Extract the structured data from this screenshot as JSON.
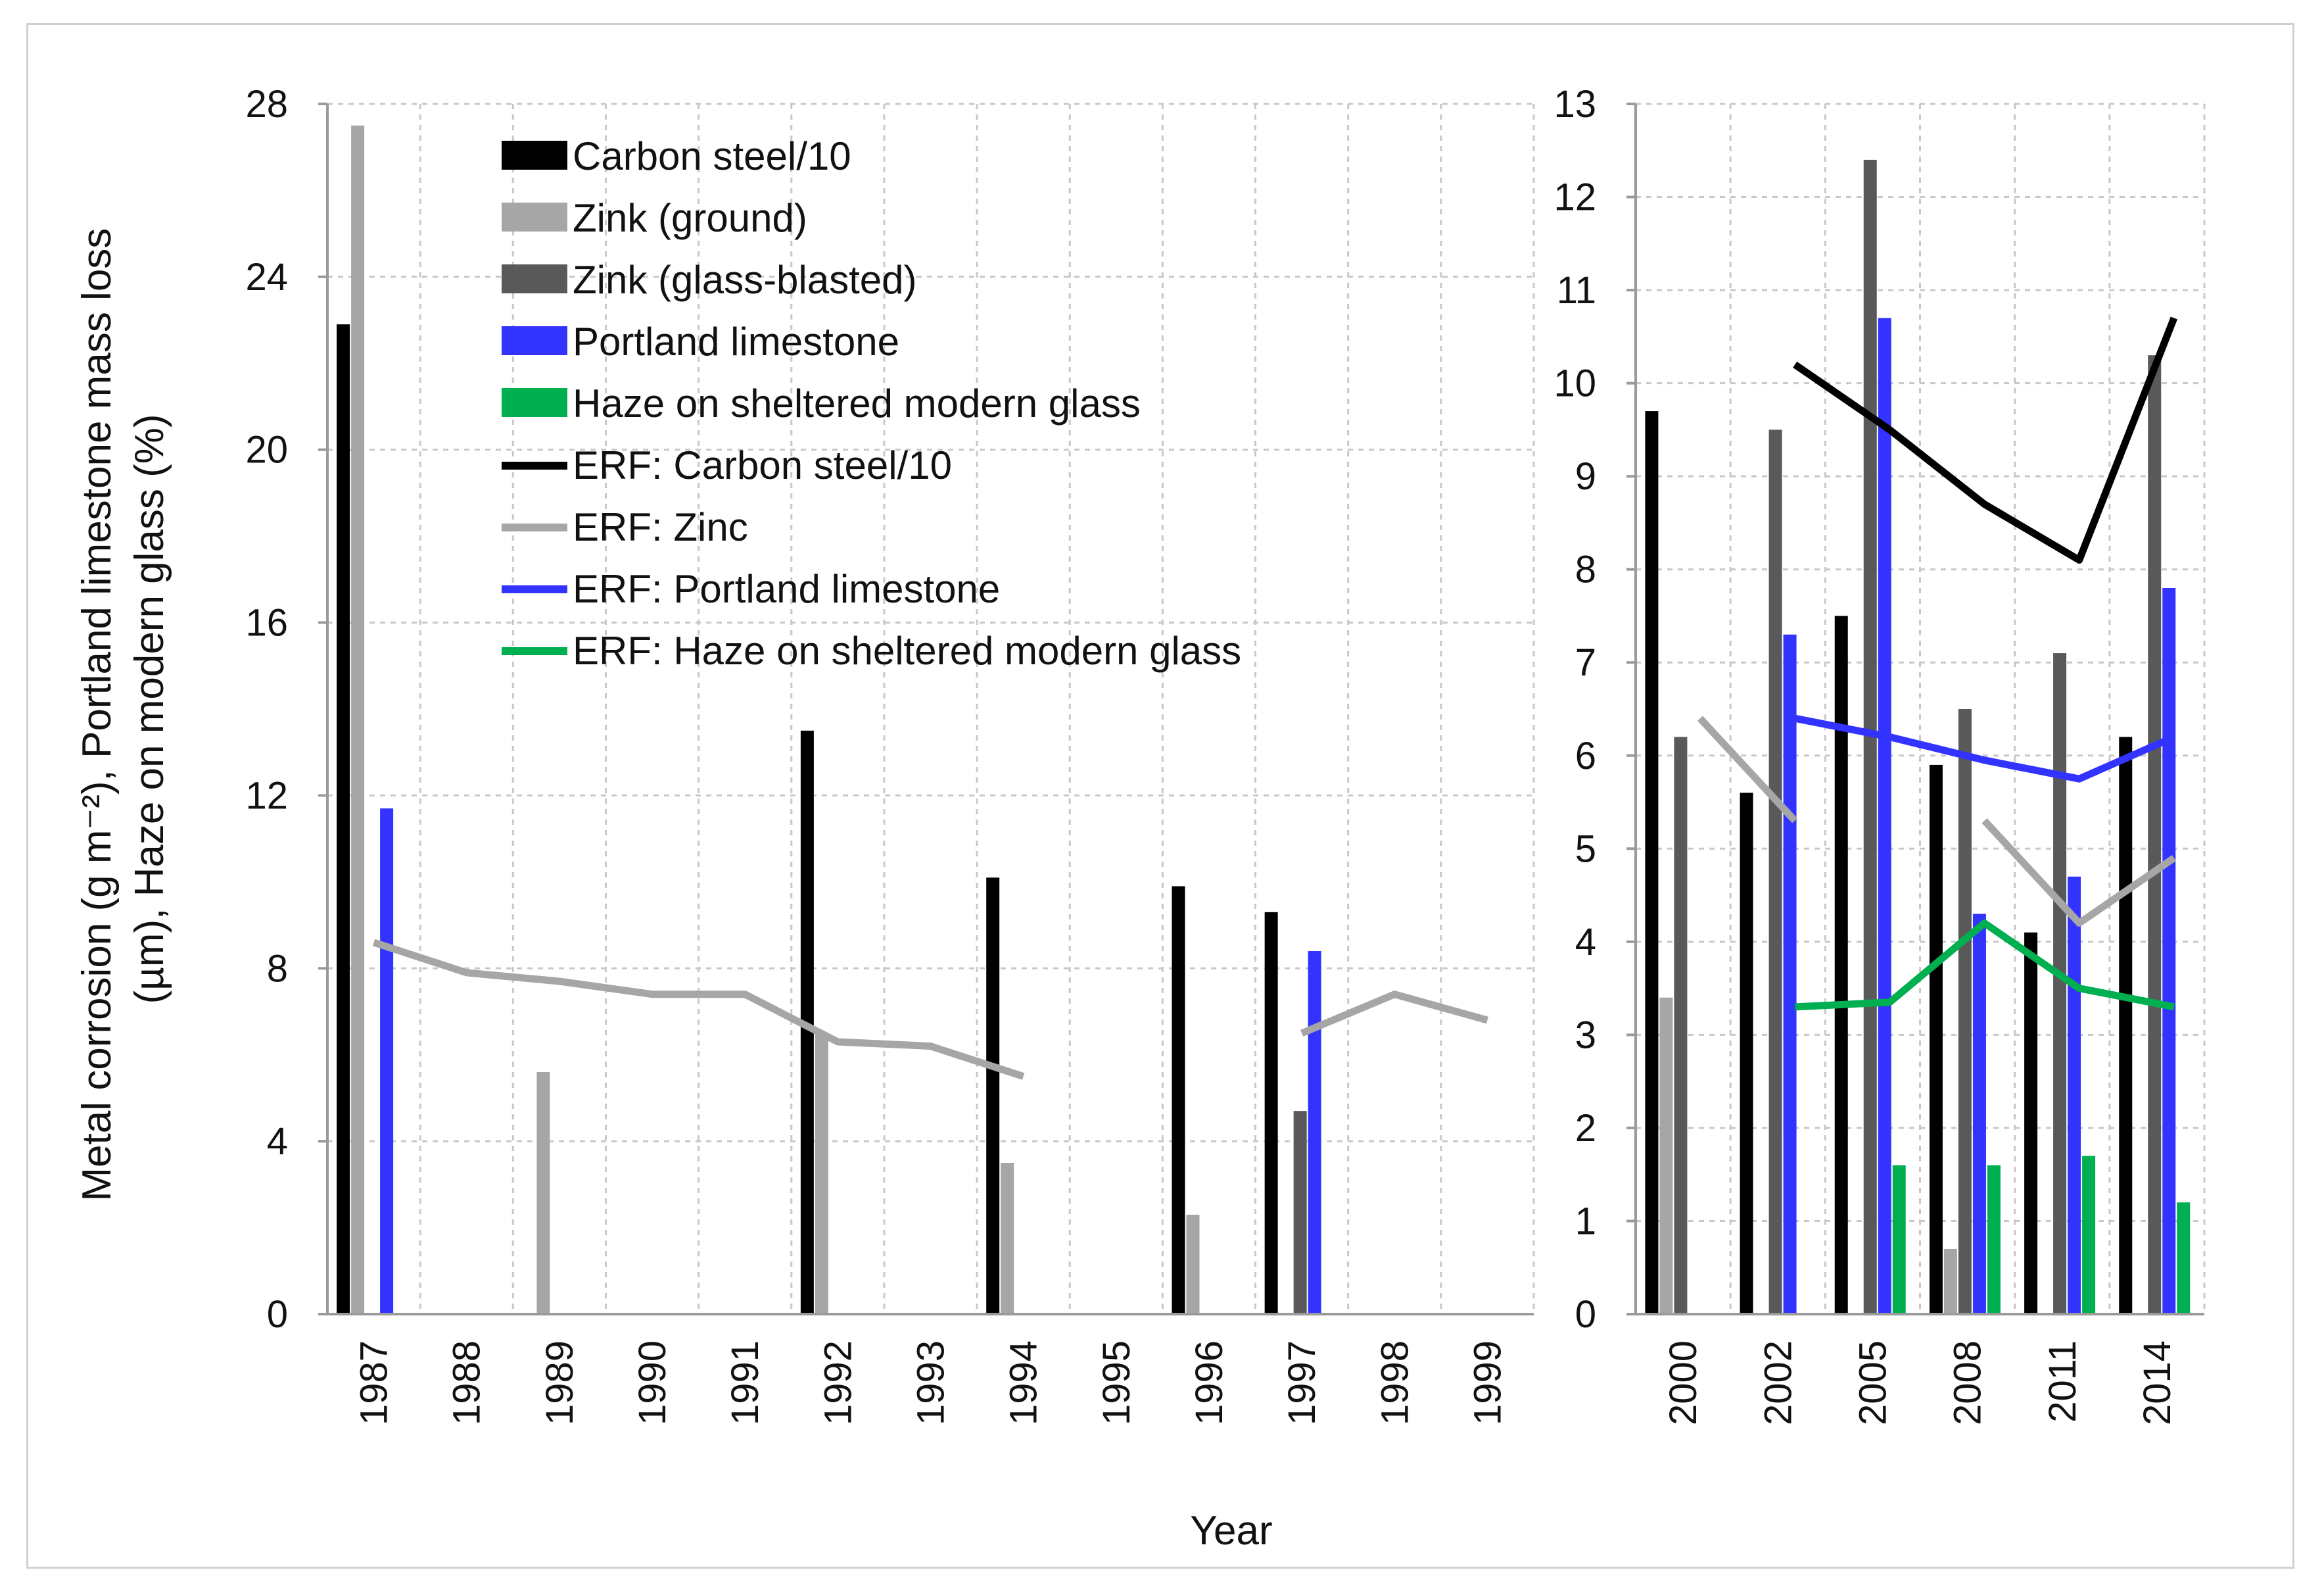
{
  "chart_data": [
    {
      "type": "bar",
      "title": "",
      "xlabel": "Year",
      "ylabel": "Metal corrosion (g m⁻²), Portland limestone mass loss (µm), Haze on modern glass (%)",
      "ylabel_line1": "Metal corrosion (g m⁻²), Portland limestone mass loss",
      "ylabel_line2": "(µm), Haze on modern glass (%)",
      "ylim": [
        0,
        28
      ],
      "yticks": [
        "0",
        "4",
        "8",
        "12",
        "16",
        "20",
        "24",
        "28"
      ],
      "categories": [
        "1987",
        "1988",
        "1989",
        "1990",
        "1991",
        "1992",
        "1993",
        "1994",
        "1995",
        "1996",
        "1997",
        "1998",
        "1999"
      ],
      "series": [
        {
          "name": "Carbon steel/10",
          "kind": "bar",
          "color": "#000000",
          "values": [
            22.9,
            null,
            null,
            null,
            null,
            13.5,
            null,
            10.1,
            null,
            9.9,
            9.3,
            null,
            null
          ]
        },
        {
          "name": "Zink (ground)",
          "kind": "bar",
          "color": "#a6a6a6",
          "values": [
            27.5,
            null,
            5.6,
            null,
            null,
            6.5,
            null,
            3.5,
            null,
            2.3,
            null,
            null,
            null
          ]
        },
        {
          "name": "Zink (glass-blasted)",
          "kind": "bar",
          "color": "#595959",
          "values": [
            null,
            null,
            null,
            null,
            null,
            null,
            null,
            null,
            null,
            null,
            4.7,
            null,
            null
          ]
        },
        {
          "name": "Portland limestone",
          "kind": "bar",
          "color": "#3333ff",
          "values": [
            11.7,
            null,
            null,
            null,
            null,
            null,
            null,
            null,
            null,
            null,
            8.4,
            null,
            null
          ]
        },
        {
          "name": "ERF: Zinc",
          "kind": "line",
          "color": "#a6a6a6",
          "segments": [
            [
              [
                0,
                8.6
              ],
              [
                1,
                7.9
              ],
              [
                2,
                7.7
              ],
              [
                3,
                7.4
              ],
              [
                4,
                7.4
              ],
              [
                5,
                6.3
              ],
              [
                6,
                6.2
              ],
              [
                7,
                5.5
              ]
            ],
            [
              [
                10,
                6.5
              ],
              [
                11,
                7.4
              ],
              [
                12,
                6.8
              ]
            ]
          ]
        }
      ]
    },
    {
      "type": "bar",
      "title": "",
      "xlabel": "Year",
      "ylabel": "",
      "ylim": [
        0,
        13
      ],
      "yticks": [
        "0",
        "1",
        "2",
        "3",
        "4",
        "5",
        "6",
        "7",
        "8",
        "9",
        "10",
        "11",
        "12",
        "13"
      ],
      "categories": [
        "2000",
        "2002",
        "2005",
        "2008",
        "2011",
        "2014"
      ],
      "series": [
        {
          "name": "Carbon steel/10",
          "kind": "bar",
          "color": "#000000",
          "values": [
            9.7,
            5.6,
            7.5,
            5.9,
            4.1,
            6.2
          ]
        },
        {
          "name": "Zink (ground)",
          "kind": "bar",
          "color": "#a6a6a6",
          "values": [
            3.4,
            null,
            null,
            0.7,
            null,
            null
          ]
        },
        {
          "name": "Zink (glass-blasted)",
          "kind": "bar",
          "color": "#595959",
          "values": [
            6.2,
            9.5,
            12.4,
            6.5,
            7.1,
            10.3
          ]
        },
        {
          "name": "Portland limestone",
          "kind": "bar",
          "color": "#3333ff",
          "values": [
            null,
            7.3,
            10.7,
            4.3,
            4.7,
            7.8
          ]
        },
        {
          "name": "Haze on sheltered modern glass",
          "kind": "bar",
          "color": "#00b050",
          "values": [
            null,
            null,
            1.6,
            1.6,
            1.7,
            1.2
          ]
        },
        {
          "name": "ERF: Carbon steel/10",
          "kind": "line",
          "color": "#000000",
          "segments": [
            [
              [
                1,
                10.2
              ],
              [
                2,
                9.5
              ],
              [
                3,
                8.7
              ],
              [
                4,
                8.1
              ],
              [
                5,
                10.7
              ]
            ]
          ]
        },
        {
          "name": "ERF: Zinc",
          "kind": "line",
          "color": "#a6a6a6",
          "segments": [
            [
              [
                0,
                6.4
              ],
              [
                1,
                5.3
              ]
            ],
            [
              [
                3,
                5.3
              ],
              [
                4,
                4.2
              ],
              [
                5,
                4.9
              ]
            ]
          ]
        },
        {
          "name": "ERF: Portland limestone",
          "kind": "line",
          "color": "#3333ff",
          "segments": [
            [
              [
                1,
                6.4
              ],
              [
                2,
                6.2
              ],
              [
                3,
                5.95
              ],
              [
                4,
                5.75
              ],
              [
                5,
                6.2
              ]
            ]
          ]
        },
        {
          "name": "ERF: Haze on sheltered modern glass",
          "kind": "line",
          "color": "#00b050",
          "segments": [
            [
              [
                1,
                3.3
              ],
              [
                2,
                3.35
              ],
              [
                3,
                4.2
              ],
              [
                4,
                3.5
              ],
              [
                5,
                3.3
              ]
            ]
          ]
        }
      ]
    }
  ],
  "legend": {
    "placement": "top-left inside plot",
    "items": [
      {
        "label": "Carbon steel/10",
        "marker": "bar",
        "color": "#000000"
      },
      {
        "label": "Zink (ground)",
        "marker": "bar",
        "color": "#a6a6a6"
      },
      {
        "label": "Zink (glass-blasted)",
        "marker": "bar",
        "color": "#595959"
      },
      {
        "label": "Portland limestone",
        "marker": "bar",
        "color": "#3333ff"
      },
      {
        "label": "Haze on sheltered modern glass",
        "marker": "bar",
        "color": "#00b050"
      },
      {
        "label": "ERF: Carbon steel/10",
        "marker": "line",
        "color": "#000000"
      },
      {
        "label": "ERF: Zinc",
        "marker": "line",
        "color": "#a6a6a6"
      },
      {
        "label": "ERF: Portland limestone",
        "marker": "line",
        "color": "#3333ff"
      },
      {
        "label": "ERF: Haze on sheltered modern glass",
        "marker": "line",
        "color": "#00b050"
      }
    ]
  }
}
